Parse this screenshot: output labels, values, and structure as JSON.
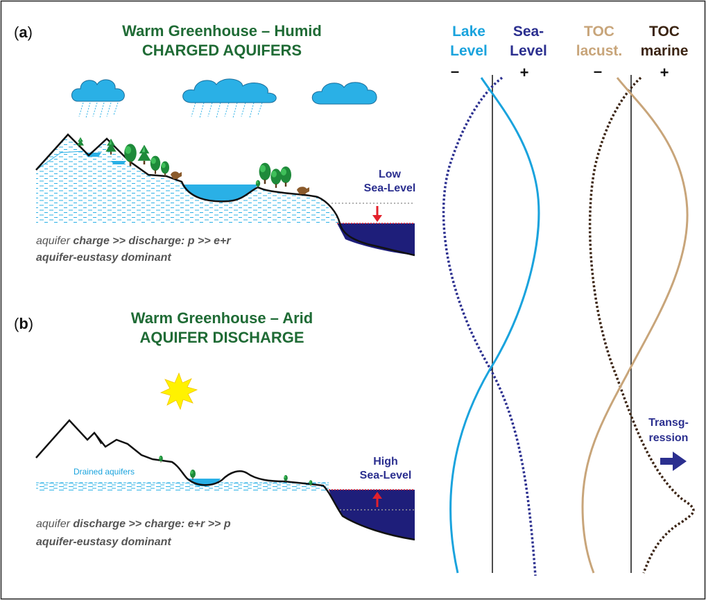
{
  "panel_a": {
    "label_open": "(",
    "label_letter": "a",
    "label_close": ")",
    "title_line1": "Warm Greenhouse – Humid",
    "title_line2": "CHARGED AQUIFERS",
    "sea_label_line1": "Low",
    "sea_label_line2": "Sea-Level",
    "caption_line1_a": "aquifer ",
    "caption_line1_b": "charge >> discharge: p >> e+r",
    "caption_line2": "aquifer-eustasy dominant"
  },
  "panel_b": {
    "label_open": "(",
    "label_letter": "b",
    "label_close": ")",
    "title_line1": "Warm Greenhouse  – Arid",
    "title_line2": "AQUIFER DISCHARGE",
    "drained_label": "Drained aquifers",
    "sea_label_line1": "High",
    "sea_label_line2": "Sea-Level",
    "caption_line1_a": "aquifer ",
    "caption_line1_b": "discharge >> charge: e+r >> p",
    "caption_line2": "aquifer-eustasy dominant"
  },
  "columns": {
    "lake_line1": "Lake",
    "lake_line2": "Level",
    "sea_line1": "Sea-",
    "sea_line2": "Level",
    "toc_lac_line1": "TOC",
    "toc_lac_line2": "lacust.",
    "toc_mar_line1": "TOC",
    "toc_mar_line2": "marine",
    "minus": "–",
    "plus": "+",
    "transgression_line1": "Transg-",
    "transgression_line2": "ression"
  },
  "colors": {
    "lake": "#1aa3dd",
    "sea": "#2b2f8f",
    "toc_lacustrine": "#c8a57a",
    "toc_marine": "#3b2413",
    "title_green": "#1f6b35",
    "sea_fill": "#1e1e7a",
    "arrow_red": "#e3212b",
    "sun": "#fff200"
  },
  "icons": {
    "clouds": "cloud-rain-icon",
    "sun": "sun-icon",
    "trees": "tree-icon",
    "animals": "animal-icon",
    "arrow": "arrow-right-icon"
  }
}
